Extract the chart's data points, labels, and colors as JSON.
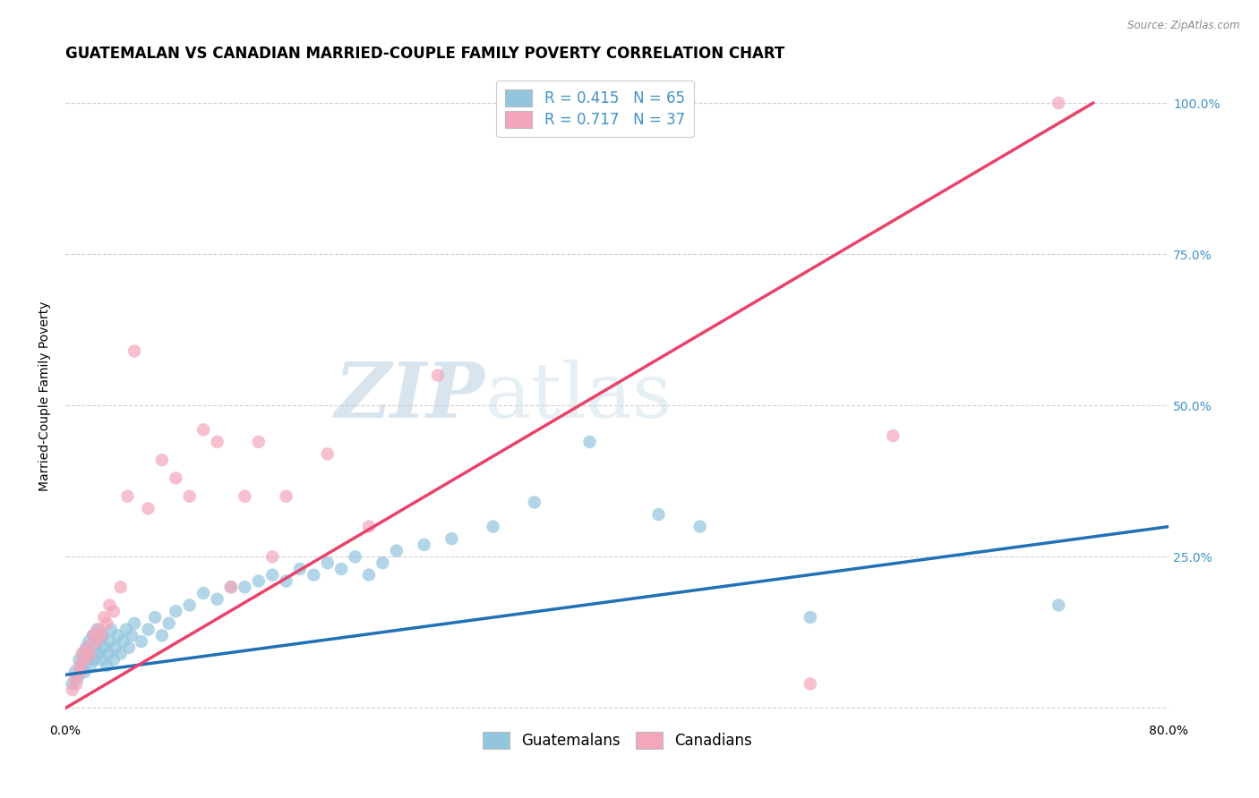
{
  "title": "GUATEMALAN VS CANADIAN MARRIED-COUPLE FAMILY POVERTY CORRELATION CHART",
  "source": "Source: ZipAtlas.com",
  "ylabel": "Married-Couple Family Poverty",
  "xlabel": "",
  "xlim": [
    0.0,
    0.8
  ],
  "ylim": [
    -0.02,
    1.05
  ],
  "yticks": [
    0.0,
    0.25,
    0.5,
    0.75,
    1.0
  ],
  "ytick_labels": [
    "",
    "25.0%",
    "50.0%",
    "75.0%",
    "100.0%"
  ],
  "xticks": [
    0.0,
    0.2,
    0.4,
    0.6,
    0.8
  ],
  "xtick_labels": [
    "0.0%",
    "",
    "",
    "",
    "80.0%"
  ],
  "blue_color": "#92c5de",
  "pink_color": "#f4a6bb",
  "line_blue": "#2171b5",
  "line_pink": "#e8436a",
  "legend_blue_r": "R = 0.415",
  "legend_blue_n": "N = 65",
  "legend_pink_r": "R = 0.717",
  "legend_pink_n": "N = 37",
  "legend_label_blue": "Guatemalans",
  "legend_label_pink": "Canadians",
  "blue_scatter_x": [
    0.005,
    0.007,
    0.009,
    0.01,
    0.012,
    0.013,
    0.014,
    0.015,
    0.016,
    0.017,
    0.018,
    0.019,
    0.02,
    0.021,
    0.022,
    0.023,
    0.024,
    0.025,
    0.026,
    0.027,
    0.028,
    0.03,
    0.031,
    0.032,
    0.033,
    0.035,
    0.036,
    0.038,
    0.04,
    0.042,
    0.044,
    0.046,
    0.048,
    0.05,
    0.055,
    0.06,
    0.065,
    0.07,
    0.075,
    0.08,
    0.09,
    0.1,
    0.11,
    0.12,
    0.13,
    0.14,
    0.15,
    0.16,
    0.17,
    0.18,
    0.19,
    0.2,
    0.21,
    0.22,
    0.23,
    0.24,
    0.26,
    0.28,
    0.31,
    0.34,
    0.38,
    0.43,
    0.46,
    0.54,
    0.72
  ],
  "blue_scatter_y": [
    0.04,
    0.06,
    0.05,
    0.08,
    0.07,
    0.09,
    0.06,
    0.1,
    0.08,
    0.11,
    0.07,
    0.09,
    0.12,
    0.08,
    0.1,
    0.13,
    0.09,
    0.11,
    0.08,
    0.12,
    0.1,
    0.07,
    0.09,
    0.11,
    0.13,
    0.08,
    0.1,
    0.12,
    0.09,
    0.11,
    0.13,
    0.1,
    0.12,
    0.14,
    0.11,
    0.13,
    0.15,
    0.12,
    0.14,
    0.16,
    0.17,
    0.19,
    0.18,
    0.2,
    0.2,
    0.21,
    0.22,
    0.21,
    0.23,
    0.22,
    0.24,
    0.23,
    0.25,
    0.22,
    0.24,
    0.26,
    0.27,
    0.28,
    0.3,
    0.34,
    0.44,
    0.32,
    0.3,
    0.15,
    0.17
  ],
  "pink_scatter_x": [
    0.005,
    0.007,
    0.008,
    0.01,
    0.011,
    0.012,
    0.014,
    0.016,
    0.018,
    0.02,
    0.022,
    0.024,
    0.026,
    0.028,
    0.03,
    0.032,
    0.035,
    0.04,
    0.045,
    0.05,
    0.06,
    0.07,
    0.08,
    0.09,
    0.1,
    0.11,
    0.12,
    0.13,
    0.14,
    0.15,
    0.16,
    0.19,
    0.22,
    0.27,
    0.54,
    0.6,
    0.72
  ],
  "pink_scatter_y": [
    0.03,
    0.05,
    0.04,
    0.07,
    0.06,
    0.09,
    0.08,
    0.1,
    0.09,
    0.12,
    0.11,
    0.13,
    0.12,
    0.15,
    0.14,
    0.17,
    0.16,
    0.2,
    0.35,
    0.59,
    0.33,
    0.41,
    0.38,
    0.35,
    0.46,
    0.44,
    0.2,
    0.35,
    0.44,
    0.25,
    0.35,
    0.42,
    0.3,
    0.55,
    0.04,
    0.45,
    1.0
  ],
  "blue_line_x": [
    0.0,
    0.8
  ],
  "blue_line_y": [
    0.055,
    0.3
  ],
  "pink_line_x": [
    0.0,
    0.745
  ],
  "pink_line_y": [
    0.0,
    1.0
  ],
  "watermark_zip": "ZIP",
  "watermark_atlas": "atlas",
  "background_color": "#ffffff",
  "grid_color": "#d0d0d0",
  "title_fontsize": 12,
  "axis_label_fontsize": 10,
  "tick_fontsize": 10,
  "legend_fontsize": 12,
  "right_tick_color": "#4292c6",
  "source_color": "#888888"
}
